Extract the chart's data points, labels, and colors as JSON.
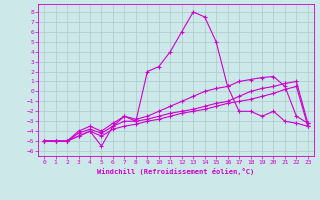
{
  "title": "",
  "xlabel": "Windchill (Refroidissement éolien,°C)",
  "bg_color": "#cce8e8",
  "grid_color": "#aacccc",
  "line_color": "#cc00cc",
  "line_color2": "#880088",
  "xlim": [
    -0.5,
    23.5
  ],
  "ylim": [
    -6.5,
    8.8
  ],
  "xticks": [
    0,
    1,
    2,
    3,
    4,
    5,
    6,
    7,
    8,
    9,
    10,
    11,
    12,
    13,
    14,
    15,
    16,
    17,
    18,
    19,
    20,
    21,
    22,
    23
  ],
  "yticks": [
    -6,
    -5,
    -4,
    -3,
    -2,
    -1,
    0,
    1,
    2,
    3,
    4,
    5,
    6,
    7,
    8
  ],
  "series": [
    {
      "x": [
        0,
        1,
        2,
        3,
        4,
        5,
        6,
        7,
        8,
        9,
        10,
        11,
        12,
        13,
        14,
        15,
        16,
        17,
        18,
        19,
        20,
        21,
        22,
        23
      ],
      "y": [
        -5,
        -5,
        -5,
        -4.5,
        -4,
        -5.5,
        -3.5,
        -2.5,
        -3.0,
        2,
        2.5,
        4,
        6,
        8,
        7.5,
        5,
        0.5,
        -2,
        -2,
        -2.5,
        -2,
        -3,
        -3.2,
        -3.5
      ],
      "lw": 0.8
    },
    {
      "x": [
        0,
        1,
        2,
        3,
        4,
        5,
        6,
        7,
        8,
        9,
        10,
        11,
        12,
        13,
        14,
        15,
        16,
        17,
        18,
        19,
        20,
        21,
        22,
        23
      ],
      "y": [
        -5,
        -5,
        -5,
        -4,
        -3.5,
        -4,
        -3.2,
        -2.5,
        -2.8,
        -2.5,
        -2,
        -1.5,
        -1,
        -0.5,
        0,
        0.3,
        0.5,
        1.0,
        1.2,
        1.4,
        1.5,
        0.5,
        -2.5,
        -3.2
      ],
      "lw": 0.8
    },
    {
      "x": [
        0,
        1,
        2,
        3,
        4,
        5,
        6,
        7,
        8,
        9,
        10,
        11,
        12,
        13,
        14,
        15,
        16,
        17,
        18,
        19,
        20,
        21,
        22,
        23
      ],
      "y": [
        -5,
        -5,
        -5,
        -4.2,
        -3.8,
        -4.2,
        -3.5,
        -3.0,
        -3.0,
        -2.8,
        -2.5,
        -2.2,
        -2,
        -1.8,
        -1.5,
        -1.2,
        -1,
        -0.5,
        0,
        0.3,
        0.5,
        0.8,
        1.0,
        -3.2
      ],
      "lw": 0.8
    },
    {
      "x": [
        0,
        1,
        2,
        3,
        4,
        5,
        6,
        7,
        8,
        9,
        10,
        11,
        12,
        13,
        14,
        15,
        16,
        17,
        18,
        19,
        20,
        21,
        22,
        23
      ],
      "y": [
        -5,
        -5,
        -5,
        -4.5,
        -4,
        -4.5,
        -3.8,
        -3.5,
        -3.3,
        -3.0,
        -2.8,
        -2.5,
        -2.2,
        -2,
        -1.8,
        -1.5,
        -1.2,
        -1,
        -0.8,
        -0.5,
        -0.2,
        0.2,
        0.5,
        -3.5
      ],
      "lw": 0.8
    }
  ]
}
